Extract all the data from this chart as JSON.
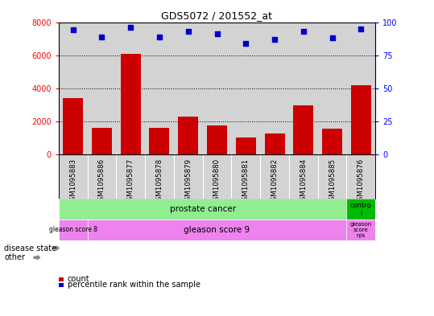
{
  "title": "GDS5072 / 201552_at",
  "samples": [
    "GSM1095883",
    "GSM1095886",
    "GSM1095877",
    "GSM1095878",
    "GSM1095879",
    "GSM1095880",
    "GSM1095881",
    "GSM1095882",
    "GSM1095884",
    "GSM1095885",
    "GSM1095876"
  ],
  "counts": [
    3400,
    1600,
    6100,
    1600,
    2300,
    1750,
    1050,
    1300,
    3000,
    1550,
    4200
  ],
  "percentile_ranks": [
    94,
    89,
    96,
    89,
    93,
    91,
    84,
    87,
    93,
    88,
    95
  ],
  "ylim_left": [
    0,
    8000
  ],
  "ylim_right": [
    0,
    100
  ],
  "yticks_left": [
    0,
    2000,
    4000,
    6000,
    8000
  ],
  "yticks_right": [
    0,
    25,
    50,
    75,
    100
  ],
  "bar_color": "#cc0000",
  "dot_color": "#0000cc",
  "plot_bg_color": "#d3d3d3",
  "xtick_bg_color": "#d3d3d3",
  "disease_state_green": "#90ee90",
  "disease_state_darkgreen": "#00bb00",
  "other_purple": "#ee82ee",
  "legend_items": [
    {
      "color": "#cc0000",
      "label": "count"
    },
    {
      "color": "#0000cc",
      "label": "percentile rank within the sample"
    }
  ]
}
